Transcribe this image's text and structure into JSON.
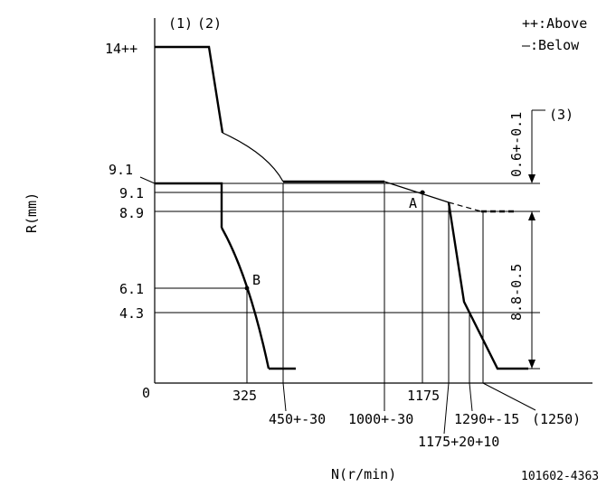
{
  "legend": {
    "above": "++:Above",
    "below": "—:Below"
  },
  "notes": {
    "n1": "(1)",
    "n2": "(2)",
    "n3": "(3)"
  },
  "axes": {
    "y_label": "R(mm)",
    "x_label": "N(r/min)",
    "origin": "0"
  },
  "y_ticks": {
    "r14": "14++",
    "r91a": "9.1",
    "r91b": "9.1",
    "r89": "8.9",
    "r61": "6.1",
    "r43": "4.3"
  },
  "x_ticks": {
    "n325": "325",
    "n450": "450+-30",
    "n1000": "1000+-30",
    "n1175": "1175",
    "n1175b": "1175+20+10",
    "n1290": "1290+-15",
    "n1250": "(1250)"
  },
  "points": {
    "a": "A",
    "b": "B"
  },
  "dims": {
    "upper": "0.6+-0.1",
    "lower": "8.8-0.5"
  },
  "code": "101602-4363"
}
